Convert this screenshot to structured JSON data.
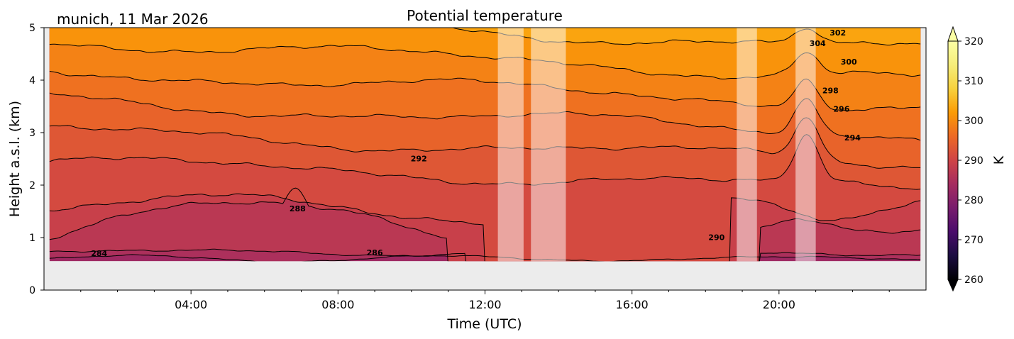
{
  "chart_data": {
    "type": "heatmap",
    "title": "Potential temperature",
    "subtitle": "munich, 11 Mar 2026",
    "xlabel": "Time (UTC)",
    "ylabel": "Height a.s.l. (km)",
    "x_unit": "hours UTC",
    "xlim": [
      0,
      24
    ],
    "ylim": [
      0,
      5
    ],
    "x_ticks": [
      {
        "value": 4,
        "label": "04:00"
      },
      {
        "value": 8,
        "label": "08:00"
      },
      {
        "value": 12,
        "label": "12:00"
      },
      {
        "value": 16,
        "label": "16:00"
      },
      {
        "value": 20,
        "label": "20:00"
      }
    ],
    "x_minor_ticks": [
      1,
      2,
      3,
      5,
      6,
      7,
      9,
      10,
      11,
      13,
      14,
      15,
      17,
      18,
      19,
      21,
      22,
      23
    ],
    "y_ticks": [
      {
        "value": 0,
        "label": "0"
      },
      {
        "value": 1,
        "label": "1"
      },
      {
        "value": 2,
        "label": "2"
      },
      {
        "value": 3,
        "label": "3"
      },
      {
        "value": 4,
        "label": "4"
      },
      {
        "value": 5,
        "label": "5"
      }
    ],
    "data_bottom_km": 0.55,
    "data_x_range": [
      0.15,
      23.85
    ],
    "colorbar": {
      "label": "K",
      "range": [
        260,
        320
      ],
      "ticks": [
        {
          "value": 260,
          "label": "260"
        },
        {
          "value": 270,
          "label": "270"
        },
        {
          "value": 280,
          "label": "280"
        },
        {
          "value": 290,
          "label": "290"
        },
        {
          "value": 300,
          "label": "300"
        },
        {
          "value": 310,
          "label": "310"
        },
        {
          "value": 320,
          "label": "320"
        }
      ],
      "extend": "both",
      "colormap": "inferno"
    },
    "no_data_color": "#ececec",
    "masked_intervals_hours": [
      [
        12.35,
        13.05
      ],
      [
        13.25,
        14.2
      ],
      [
        18.85,
        19.4
      ],
      [
        20.45,
        21.0
      ]
    ],
    "contour_levels_K": [
      284,
      286,
      288,
      290,
      292,
      294,
      296,
      298,
      300,
      302,
      304
    ],
    "contour_labels": [
      {
        "value": 284,
        "label": "284",
        "x": 1.5,
        "y": 0.65
      },
      {
        "value": 286,
        "label": "286",
        "x": 9.0,
        "y": 0.66
      },
      {
        "value": 288,
        "label": "288",
        "x": 6.9,
        "y": 1.5
      },
      {
        "value": 290,
        "label": "290",
        "x": 18.3,
        "y": 0.95
      },
      {
        "value": 292,
        "label": "292",
        "x": 10.2,
        "y": 2.45
      },
      {
        "value": 294,
        "label": "294",
        "x": 22.0,
        "y": 2.85
      },
      {
        "value": 296,
        "label": "296",
        "x": 21.7,
        "y": 3.4
      },
      {
        "value": 298,
        "label": "298",
        "x": 21.4,
        "y": 3.75
      },
      {
        "value": 300,
        "label": "300",
        "x": 21.9,
        "y": 4.3
      },
      {
        "value": 302,
        "label": "302",
        "x": 21.6,
        "y": 4.85
      },
      {
        "value": 304,
        "label": "304",
        "x": 21.05,
        "y": 4.65
      }
    ]
  }
}
